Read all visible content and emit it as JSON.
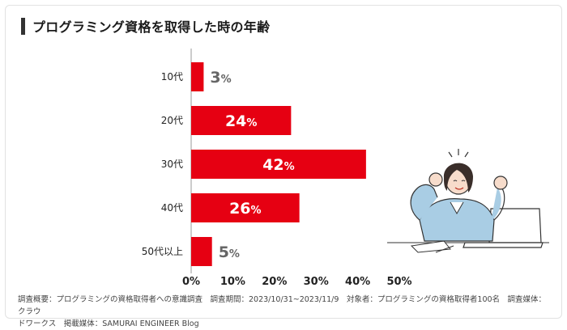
{
  "title": "プログラミング資格を取得した時の年齢",
  "footer": {
    "line1": "調査概要：プログラミングの資格取得者への意識調査　調査期間：2023/10/31~2023/11/9　対象者：プログラミングの資格取得者100名　調査媒体：クラウ",
    "line2": "ドワークス　掲載媒体：SAMURAI ENGINEER Blog"
  },
  "colors": {
    "bar": "#e60012",
    "label_inside": "#ffffff",
    "label_outside": "#666666",
    "axis": "#999999"
  },
  "chart_data": {
    "type": "bar",
    "orientation": "horizontal",
    "title": "プログラミング資格を取得した時の年齢",
    "categories": [
      "10代",
      "20代",
      "30代",
      "40代",
      "50代以上"
    ],
    "values": [
      3,
      24,
      42,
      26,
      5
    ],
    "value_suffix": "%",
    "xlim": [
      0,
      50
    ],
    "ticks": [
      0,
      10,
      20,
      30,
      40,
      50
    ],
    "tick_labels": [
      "0%",
      "10%",
      "20%",
      "30%",
      "40%",
      "50%"
    ],
    "grid": false,
    "legend": "none"
  }
}
